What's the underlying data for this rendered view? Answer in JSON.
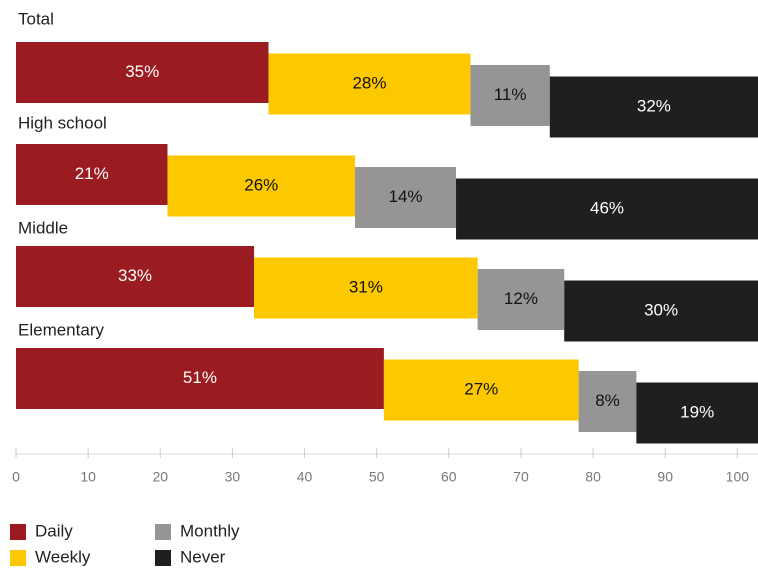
{
  "chart_data": {
    "type": "stacked-bar-horizontal",
    "categories": [
      "Total",
      "High school",
      "Middle",
      "Elementary"
    ],
    "series": [
      {
        "name": "Daily",
        "color": "#9b1c20",
        "values": [
          35,
          21,
          33,
          51
        ],
        "value_labels": [
          "35%",
          "21%",
          "33%",
          "51%"
        ]
      },
      {
        "name": "Weekly",
        "color": "#fcc800",
        "values": [
          28,
          26,
          31,
          27
        ],
        "value_labels": [
          "28%",
          "26%",
          "31%",
          "27%"
        ]
      },
      {
        "name": "Monthly",
        "color": "#959595",
        "values": [
          11,
          14,
          12,
          8
        ],
        "value_labels": [
          "11%",
          "14%",
          "12%",
          "8%"
        ]
      },
      {
        "name": "Never",
        "color": "#1f1f1f",
        "values": [
          32,
          46,
          30,
          19
        ],
        "value_labels": [
          "32%",
          "46%",
          "30%",
          "19%"
        ]
      }
    ],
    "xlim": [
      0,
      103
    ],
    "xticks": [
      0,
      10,
      20,
      30,
      40,
      50,
      60,
      70,
      80,
      90,
      100
    ]
  }
}
